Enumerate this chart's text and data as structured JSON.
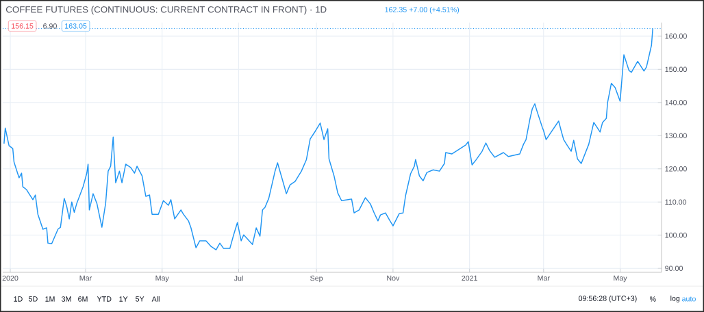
{
  "chart_data": {
    "type": "line",
    "title": "COFFEE FUTURES (CONTINUOUS: CURRENT CONTRACT IN FRONT) · 1D",
    "annotations": [
      "156.15",
      "6.90",
      "163.05",
      "162.35 +7.00 (+4.51%)",
      "1D",
      "5D",
      "1M",
      "3M",
      "6M",
      "YTD",
      "1Y",
      "5Y",
      "All",
      "09:56:28 (UTC+3)",
      "%",
      "log",
      "auto"
    ],
    "x": [
      "2019-12-27",
      "2019-12-28",
      "2019-12-31",
      "2020-01-03",
      "2020-01-04",
      "2020-01-08",
      "2020-01-10",
      "2020-01-11",
      "2020-01-14",
      "2020-01-19",
      "2020-01-21",
      "2020-01-23",
      "2020-01-27",
      "2020-01-30",
      "2020-01-31",
      "2020-02-03",
      "2020-02-08",
      "2020-02-10",
      "2020-02-13",
      "2020-02-15",
      "2020-02-17",
      "2020-02-19",
      "2020-02-21",
      "2020-02-23",
      "2020-02-28",
      "2020-03-02",
      "2020-03-03",
      "2020-03-04",
      "2020-03-07",
      "2020-03-10",
      "2020-03-14",
      "2020-03-17",
      "2020-03-19",
      "2020-03-21",
      "2020-03-23",
      "2020-03-25",
      "2020-03-28",
      "2020-03-30",
      "2020-04-02",
      "2020-04-06",
      "2020-04-09",
      "2020-04-11",
      "2020-04-15",
      "2020-04-18",
      "2020-04-21",
      "2020-04-23",
      "2020-04-28",
      "2020-05-02",
      "2020-05-06",
      "2020-05-08",
      "2020-05-11",
      "2020-05-16",
      "2020-05-18",
      "2020-05-22",
      "2020-05-24",
      "2020-05-28",
      "2020-05-31",
      "2020-06-05",
      "2020-06-09",
      "2020-06-13",
      "2020-06-16",
      "2020-06-19",
      "2020-06-24",
      "2020-06-27",
      "2020-06-30",
      "2020-07-03",
      "2020-07-05",
      "2020-07-12",
      "2020-07-15",
      "2020-07-18",
      "2020-07-20",
      "2020-07-22",
      "2020-07-25",
      "2020-07-30",
      "2020-08-01",
      "2020-08-06",
      "2020-08-08",
      "2020-08-11",
      "2020-08-15",
      "2020-08-20",
      "2020-08-24",
      "2020-08-27",
      "2020-08-31",
      "2020-09-04",
      "2020-09-07",
      "2020-09-10",
      "2020-09-11",
      "2020-09-15",
      "2020-09-18",
      "2020-09-21",
      "2020-09-29",
      "2020-10-01",
      "2020-10-05",
      "2020-10-10",
      "2020-10-14",
      "2020-10-17",
      "2020-10-20",
      "2020-10-22",
      "2020-10-26",
      "2020-10-29",
      "2020-11-01",
      "2020-11-06",
      "2020-11-09",
      "2020-11-11",
      "2020-11-15",
      "2020-11-18",
      "2020-11-19",
      "2020-11-22",
      "2020-11-25",
      "2020-11-28",
      "2020-12-03",
      "2020-12-08",
      "2020-12-12",
      "2020-12-13",
      "2020-12-18",
      "2020-12-29",
      "2020-12-31",
      "2021-01-03",
      "2021-01-06",
      "2021-01-11",
      "2021-01-14",
      "2021-01-17",
      "2021-01-21",
      "2021-01-28",
      "2021-02-01",
      "2021-02-10",
      "2021-02-13",
      "2021-02-15",
      "2021-02-18",
      "2021-02-20",
      "2021-02-22",
      "2021-02-24",
      "2021-02-28",
      "2021-03-01",
      "2021-03-03",
      "2021-03-06",
      "2021-03-13",
      "2021-03-15",
      "2021-03-17",
      "2021-03-20",
      "2021-03-23",
      "2021-03-25",
      "2021-03-28",
      "2021-03-31",
      "2021-04-06",
      "2021-04-10",
      "2021-04-15",
      "2021-04-17",
      "2021-04-20",
      "2021-04-21",
      "2021-04-24",
      "2021-04-27",
      "2021-05-01",
      "2021-05-04",
      "2021-05-08",
      "2021-05-10",
      "2021-05-15",
      "2021-05-20",
      "2021-05-22",
      "2021-05-26",
      "2021-05-27"
    ],
    "series": [
      {
        "color": "#2196f3",
        "values": [
          127.6,
          132.3,
          127.0,
          126.1,
          122.0,
          117.3,
          118.7,
          114.6,
          113.7,
          110.7,
          112.1,
          106.3,
          101.8,
          102.2,
          97.6,
          97.4,
          101.8,
          102.4,
          111.1,
          108.6,
          104.9,
          110.0,
          106.9,
          109.6,
          114.6,
          118.7,
          121.4,
          107.6,
          112.5,
          109.6,
          102.4,
          109.6,
          119.3,
          120.8,
          129.6,
          115.8,
          119.3,
          115.8,
          121.4,
          120.4,
          118.7,
          120.8,
          117.9,
          111.7,
          112.1,
          106.3,
          106.3,
          110.4,
          109.0,
          110.7,
          104.9,
          107.6,
          106.3,
          104.3,
          102.2,
          96.2,
          98.3,
          98.3,
          96.6,
          95.6,
          97.6,
          96.0,
          96.0,
          100.1,
          103.8,
          98.3,
          100.1,
          97.2,
          102.2,
          99.7,
          107.6,
          108.4,
          111.1,
          119.3,
          121.8,
          115.2,
          112.5,
          115.2,
          116.2,
          119.3,
          122.8,
          129.0,
          131.3,
          133.8,
          128.8,
          132.1,
          123.0,
          117.9,
          112.7,
          110.4,
          110.9,
          106.7,
          107.6,
          111.3,
          109.4,
          106.7,
          104.3,
          106.1,
          106.7,
          104.7,
          102.8,
          106.5,
          106.7,
          111.9,
          118.5,
          120.8,
          122.8,
          117.9,
          116.4,
          118.9,
          119.7,
          119.3,
          121.6,
          124.9,
          124.5,
          127.2,
          128.2,
          121.2,
          122.6,
          125.3,
          127.8,
          125.5,
          123.5,
          124.9,
          123.7,
          124.5,
          127.4,
          128.8,
          134.8,
          138.1,
          139.6,
          137.1,
          132.5,
          131.5,
          128.8,
          130.5,
          134.4,
          131.5,
          128.8,
          127.0,
          125.3,
          128.6,
          123.0,
          121.6,
          127.4,
          134.0,
          131.1,
          134.0,
          135.2,
          140.0,
          145.8,
          144.5,
          140.4,
          154.4,
          149.7,
          149.1,
          152.4,
          149.5,
          150.7,
          157.3,
          162.3
        ]
      }
    ],
    "xlim": [
      "2019-12-26",
      "2021-06-03"
    ],
    "xticks": [
      {
        "value": "2020-01-01",
        "label": "2020"
      },
      {
        "value": "2020-03-01",
        "label": "Mar"
      },
      {
        "value": "2020-05-01",
        "label": "May"
      },
      {
        "value": "2020-07-01",
        "label": "Jul"
      },
      {
        "value": "2020-09-01",
        "label": "Sep"
      },
      {
        "value": "2020-11-01",
        "label": "Nov"
      },
      {
        "value": "2021-01-01",
        "label": "2021"
      },
      {
        "value": "2021-03-01",
        "label": "Mar"
      },
      {
        "value": "2021-05-01",
        "label": "May"
      }
    ],
    "ylim": [
      88.8,
      164.1
    ],
    "yticks": [
      {
        "value": 90,
        "label": "90.00"
      },
      {
        "value": 100,
        "label": "100.00"
      },
      {
        "value": 110,
        "label": "110.00"
      },
      {
        "value": 120,
        "label": "120.00"
      },
      {
        "value": 130,
        "label": "130.00"
      },
      {
        "value": 140,
        "label": "140.00"
      },
      {
        "value": 150,
        "label": "150.00"
      },
      {
        "value": 160,
        "label": "160.00"
      }
    ],
    "ref_lines": [
      {
        "axis": "y",
        "value": 162.35,
        "color": "#2196f3",
        "line_style": "dotted"
      }
    ],
    "grid": true,
    "marker": "none",
    "line_style": "solid"
  }
}
